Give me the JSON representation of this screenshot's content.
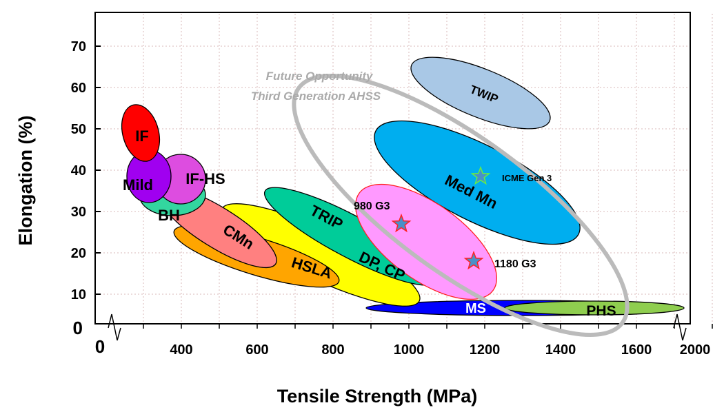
{
  "chart_data": {
    "type": "scatter",
    "title": "",
    "xlabel": "Tensile Strength (MPa)",
    "ylabel": "Elongation (%)",
    "xlim": [
      0,
      2000
    ],
    "ylim": [
      0,
      70
    ],
    "x_ticks": [
      "0",
      "400",
      "600",
      "800",
      "1000",
      "1200",
      "1400",
      "1600",
      "2000"
    ],
    "y_ticks": [
      "0",
      "10",
      "20",
      "30",
      "40",
      "50",
      "60",
      "70"
    ],
    "grid": true,
    "annotation": [
      "Future Opportunity",
      "Third Generation AHSS"
    ],
    "regions": [
      {
        "name": "IF",
        "color": "#ff0000"
      },
      {
        "name": "Mild",
        "color": "#a000f0"
      },
      {
        "name": "BH",
        "color": "#33d69f"
      },
      {
        "name": "IF-HS",
        "color": "#dd4de0"
      },
      {
        "name": "CMn",
        "color": "#ff8080"
      },
      {
        "name": "HSLA",
        "color": "#ffa500"
      },
      {
        "name": "DP, CP",
        "color": "#ffff00"
      },
      {
        "name": "TRIP",
        "color": "#00cc99"
      },
      {
        "name": "G3",
        "color": "#ff99ff"
      },
      {
        "name": "Med Mn",
        "color": "#00aeef"
      },
      {
        "name": "TWIP",
        "color": "#a9c8e6"
      },
      {
        "name": "MS",
        "color": "#0000ff"
      },
      {
        "name": "PHS",
        "color": "#8fce4f"
      }
    ],
    "points": [
      {
        "label": "980 G3",
        "x": 1000,
        "y": 27
      },
      {
        "label": "1180 G3",
        "x": 1180,
        "y": 18
      },
      {
        "label": "ICME Gen 3",
        "x": 1200,
        "y": 38.5
      }
    ]
  }
}
